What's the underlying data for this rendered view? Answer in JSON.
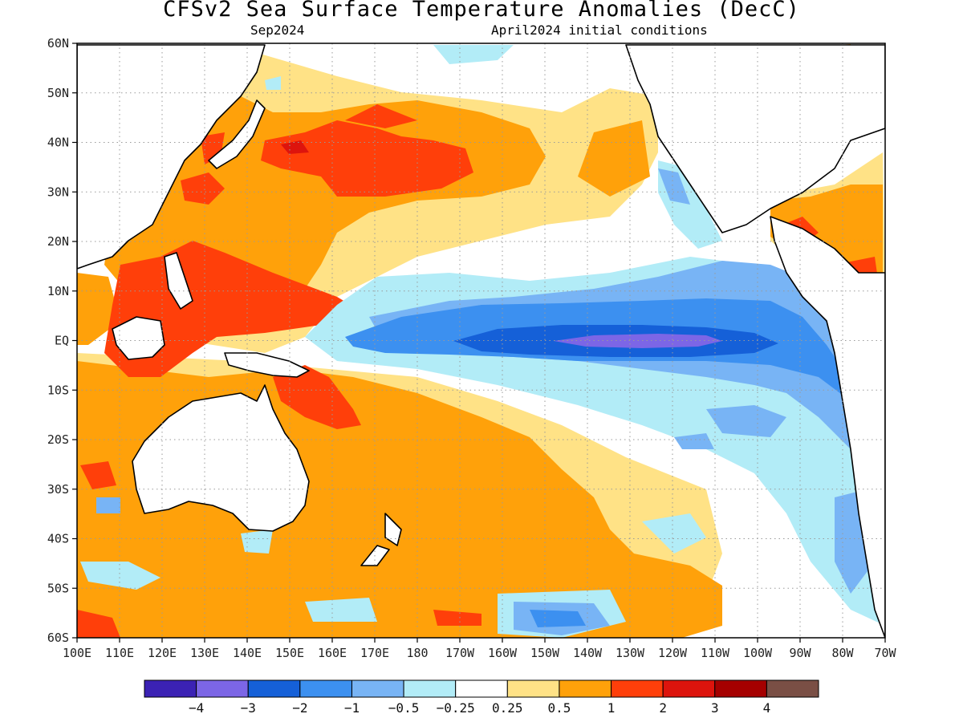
{
  "title": "CFSv2 Sea Surface Temperature Anomalies (DecC)",
  "valid_month": "Sep2024",
  "initial_conditions": "April2024 initial conditions",
  "lat_labels": [
    "60N",
    "50N",
    "40N",
    "30N",
    "20N",
    "10N",
    "EQ",
    "10S",
    "20S",
    "30S",
    "40S",
    "50S",
    "60S"
  ],
  "lon_labels": [
    "100E",
    "110E",
    "120E",
    "130E",
    "140E",
    "150E",
    "160E",
    "170E",
    "180",
    "170W",
    "160W",
    "150W",
    "140W",
    "130W",
    "120W",
    "110W",
    "100W",
    "90W",
    "80W",
    "70W"
  ],
  "colorbar": {
    "colors": [
      "#3b22b4",
      "#7c66e6",
      "#1560d8",
      "#3c90f0",
      "#78b4f5",
      "#b2ecf7",
      "#ffffff",
      "#ffe286",
      "#ffa10a",
      "#ff3f0a",
      "#dd140d",
      "#a50000",
      "#7a4f45"
    ],
    "labels": [
      "−4",
      "−3",
      "−2",
      "−1",
      "−0.5",
      "−0.25",
      "0.25",
      "0.5",
      "1",
      "2",
      "3",
      "4"
    ]
  }
}
